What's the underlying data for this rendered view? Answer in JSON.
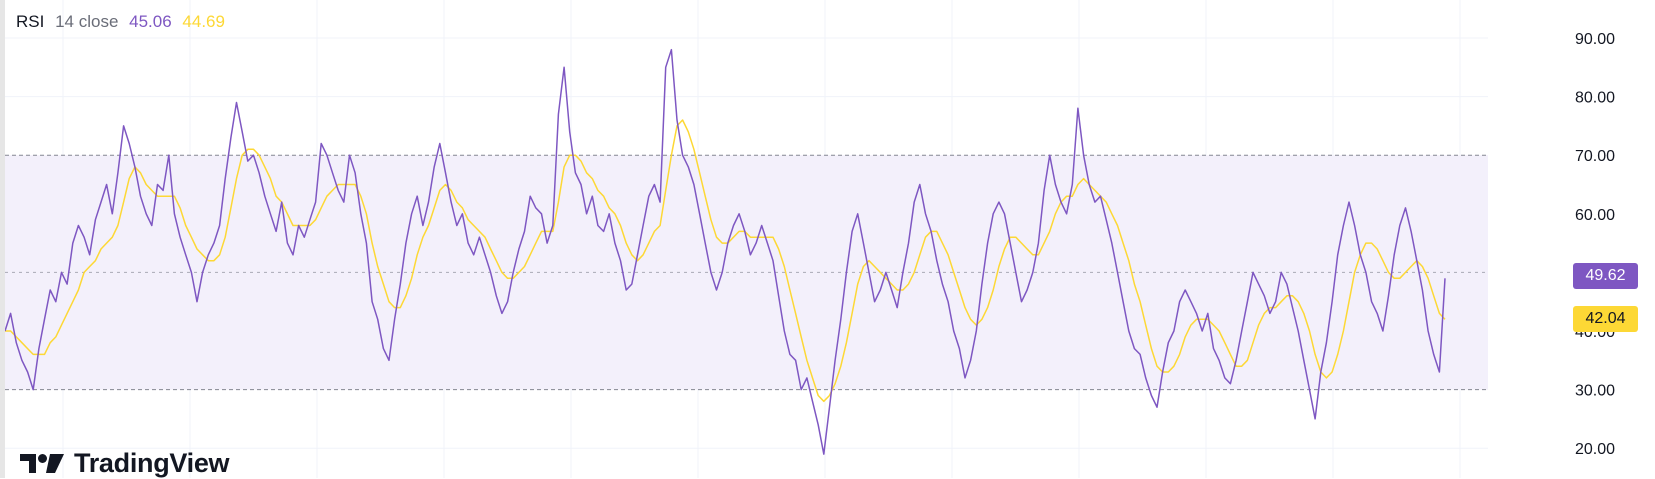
{
  "legend": {
    "name": "RSI",
    "params": "14 close",
    "rsi_value": "45.06",
    "ma_value": "44.69"
  },
  "price_tags": {
    "rsi": "49.62",
    "ma": "42.04"
  },
  "logo_text": "TradingView",
  "colors": {
    "rsi_line": "#7e57c2",
    "ma_line": "#fdd835",
    "band_fill": "#f3f0fb",
    "band_line": "#787b86",
    "rsi_tag_bg": "#7e57c2",
    "ma_tag_bg": "#fdd835",
    "axis_text": "#131722"
  },
  "chart_data": {
    "type": "line",
    "title": "",
    "ylim": [
      18,
      94
    ],
    "y_ticks": [
      "90.00",
      "80.00",
      "70.00",
      "60.00",
      "40.00",
      "30.00",
      "20.00"
    ],
    "bands": {
      "upper": 70,
      "middle": 50,
      "lower": 30
    },
    "grid": true,
    "series": [
      {
        "name": "RSI",
        "values": [
          40,
          43,
          38,
          35,
          33,
          30,
          37,
          42,
          47,
          45,
          50,
          48,
          55,
          58,
          56,
          53,
          59,
          62,
          65,
          60,
          67,
          75,
          72,
          68,
          63,
          60,
          58,
          65,
          64,
          70,
          60,
          56,
          53,
          50,
          45,
          50,
          53,
          55,
          58,
          66,
          73,
          79,
          74,
          69,
          70,
          67,
          63,
          60,
          57,
          62,
          55,
          53,
          58,
          56,
          59,
          62,
          72,
          70,
          67,
          64,
          62,
          70,
          67,
          60,
          55,
          45,
          42,
          37,
          35,
          42,
          48,
          55,
          60,
          63,
          58,
          62,
          68,
          72,
          67,
          62,
          58,
          60,
          55,
          53,
          56,
          53,
          50,
          46,
          43,
          45,
          50,
          54,
          57,
          63,
          61,
          60,
          55,
          58,
          77,
          85,
          74,
          67,
          65,
          60,
          63,
          58,
          57,
          60,
          55,
          52,
          47,
          48,
          53,
          58,
          63,
          65,
          62,
          85,
          88,
          76,
          70,
          68,
          65,
          60,
          55,
          50,
          47,
          50,
          55,
          58,
          60,
          57,
          53,
          55,
          58,
          55,
          52,
          46,
          40,
          36,
          35,
          30,
          32,
          28,
          24,
          19,
          27,
          35,
          42,
          50,
          57,
          60,
          55,
          50,
          45,
          47,
          50,
          47,
          44,
          50,
          55,
          62,
          65,
          60,
          57,
          52,
          48,
          45,
          40,
          37,
          32,
          35,
          40,
          48,
          55,
          60,
          62,
          60,
          55,
          50,
          45,
          47,
          50,
          55,
          64,
          70,
          65,
          62,
          60,
          65,
          78,
          70,
          65,
          62,
          63,
          59,
          55,
          50,
          45,
          40,
          37,
          36,
          32,
          29,
          27,
          33,
          38,
          40,
          45,
          47,
          45,
          43,
          40,
          43,
          37,
          35,
          32,
          31,
          35,
          40,
          45,
          50,
          48,
          46,
          43,
          45,
          50,
          48,
          44,
          40,
          35,
          30,
          25,
          33,
          38,
          45,
          53,
          58,
          62,
          58,
          53,
          50,
          45,
          43,
          40,
          46,
          53,
          58,
          61,
          57,
          52,
          47,
          40,
          36,
          33,
          49
        ]
      },
      {
        "name": "MA",
        "values": [
          40,
          40,
          39,
          38,
          37,
          36,
          36,
          36,
          38,
          39,
          41,
          43,
          45,
          47,
          50,
          51,
          52,
          54,
          55,
          56,
          58,
          62,
          66,
          68,
          67,
          65,
          64,
          63,
          63,
          63,
          63,
          61,
          58,
          56,
          54,
          53,
          52,
          52,
          53,
          56,
          61,
          66,
          70,
          71,
          71,
          70,
          68,
          66,
          63,
          62,
          60,
          58,
          58,
          58,
          58,
          59,
          61,
          63,
          64,
          65,
          65,
          65,
          65,
          63,
          60,
          55,
          51,
          48,
          45,
          44,
          44,
          46,
          49,
          53,
          56,
          58,
          61,
          64,
          65,
          64,
          62,
          61,
          59,
          58,
          57,
          56,
          54,
          52,
          50,
          49,
          49,
          50,
          51,
          53,
          55,
          57,
          57,
          57,
          62,
          68,
          70,
          70,
          69,
          67,
          66,
          64,
          63,
          61,
          60,
          58,
          55,
          53,
          52,
          53,
          55,
          57,
          58,
          64,
          70,
          75,
          76,
          74,
          71,
          67,
          63,
          59,
          56,
          55,
          55,
          56,
          57,
          57,
          56,
          56,
          56,
          56,
          56,
          54,
          51,
          47,
          43,
          39,
          35,
          32,
          29,
          28,
          29,
          31,
          34,
          38,
          43,
          48,
          51,
          52,
          51,
          50,
          49,
          48,
          47,
          47,
          48,
          50,
          53,
          56,
          57,
          57,
          55,
          53,
          50,
          47,
          44,
          42,
          41,
          42,
          44,
          47,
          51,
          54,
          56,
          56,
          55,
          54,
          53,
          53,
          55,
          57,
          60,
          62,
          63,
          63,
          65,
          66,
          65,
          64,
          63,
          62,
          60,
          58,
          55,
          52,
          48,
          45,
          41,
          37,
          34,
          33,
          33,
          34,
          36,
          39,
          41,
          42,
          42,
          42,
          41,
          40,
          38,
          36,
          34,
          34,
          35,
          38,
          41,
          43,
          44,
          44,
          45,
          46,
          46,
          45,
          43,
          40,
          36,
          33,
          32,
          33,
          36,
          40,
          45,
          50,
          53,
          55,
          55,
          54,
          52,
          50,
          49,
          49,
          50,
          51,
          52,
          51,
          49,
          46,
          43,
          42
        ]
      }
    ]
  }
}
